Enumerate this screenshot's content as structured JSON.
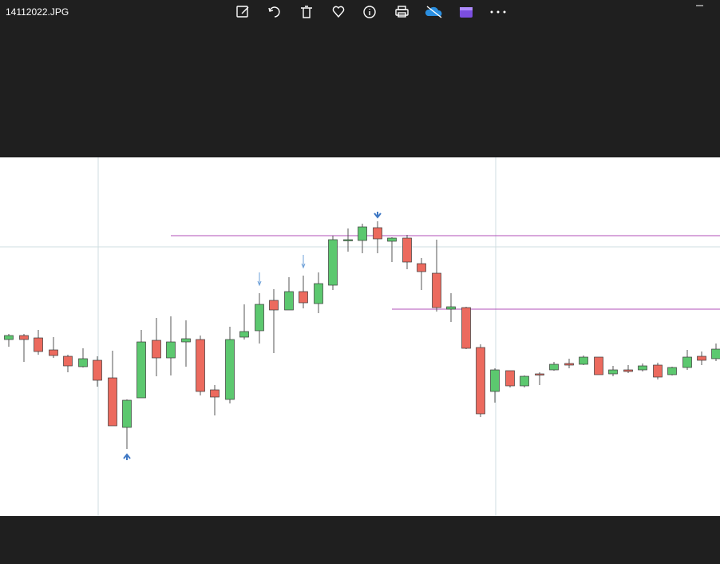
{
  "window": {
    "file_name": "14112022.JPG"
  }
}
